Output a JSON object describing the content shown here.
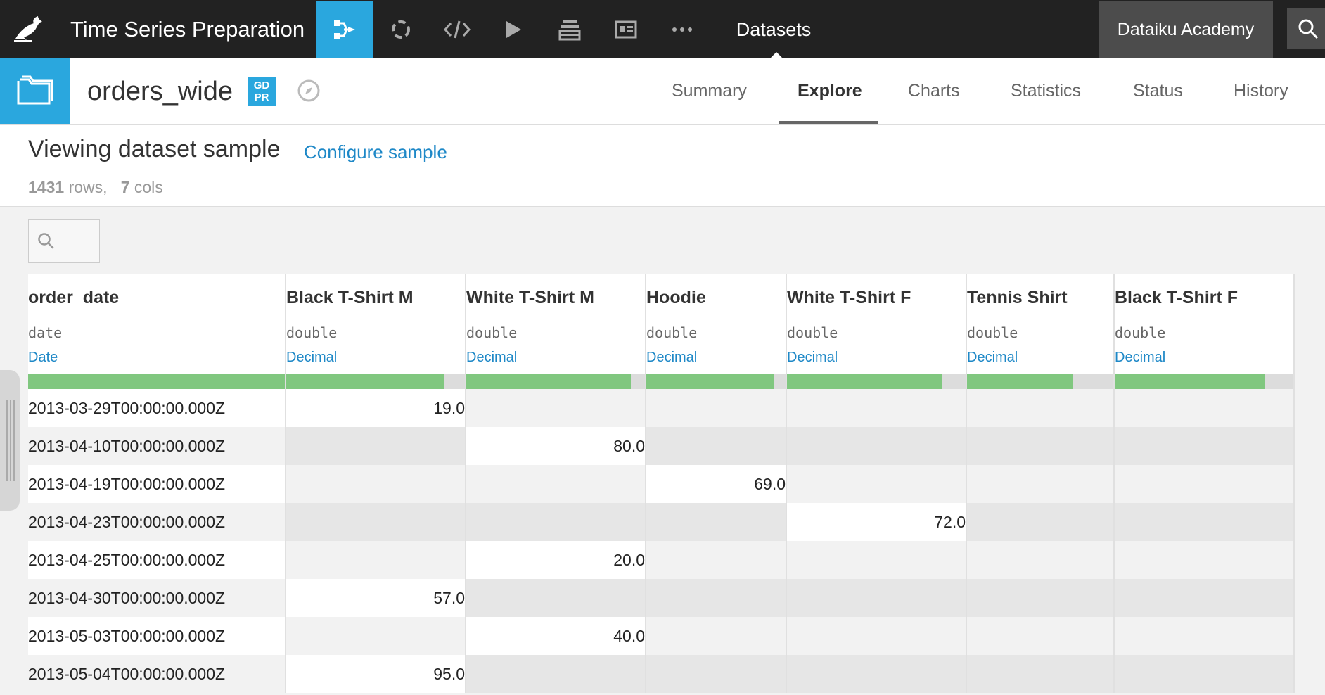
{
  "nav": {
    "project_title": "Time Series Preparation",
    "datasets_label": "Datasets",
    "academy_label": "Dataiku Academy",
    "icons": [
      "flow-icon",
      "lifecycle-icon",
      "code-icon",
      "run-icon",
      "stack-icon",
      "dashboard-icon",
      "more-icon"
    ]
  },
  "dataset": {
    "name": "orders_wide",
    "gdpr_top": "GD",
    "gdpr_bottom": "PR",
    "tabs": [
      "Summary",
      "Explore",
      "Charts",
      "Statistics",
      "Status",
      "History"
    ],
    "active_tab": "Explore"
  },
  "sample": {
    "title": "Viewing dataset sample",
    "configure_label": "Configure sample",
    "rows_count": "1431",
    "rows_label": "rows,",
    "cols_count": "7",
    "cols_label": "cols"
  },
  "columns": [
    {
      "name": "order_date",
      "type": "date",
      "meaning": "Date",
      "valid_fraction": 1.0
    },
    {
      "name": "Black T-Shirt M",
      "type": "double",
      "meaning": "Decimal",
      "valid_fraction": 0.88
    },
    {
      "name": "White T-Shirt M",
      "type": "double",
      "meaning": "Decimal",
      "valid_fraction": 0.92
    },
    {
      "name": "Hoodie",
      "type": "double",
      "meaning": "Decimal",
      "valid_fraction": 0.92
    },
    {
      "name": "White T-Shirt F",
      "type": "double",
      "meaning": "Decimal",
      "valid_fraction": 0.87
    },
    {
      "name": "Tennis Shirt",
      "type": "double",
      "meaning": "Decimal",
      "valid_fraction": 0.72
    },
    {
      "name": "Black T-Shirt F",
      "type": "double",
      "meaning": "Decimal",
      "valid_fraction": 0.84
    }
  ],
  "rows": [
    [
      "2013-03-29T00:00:00.000Z",
      "19.0",
      "",
      "",
      "",
      "",
      ""
    ],
    [
      "2013-04-10T00:00:00.000Z",
      "",
      "80.0",
      "",
      "",
      "",
      ""
    ],
    [
      "2013-04-19T00:00:00.000Z",
      "",
      "",
      "69.0",
      "",
      "",
      ""
    ],
    [
      "2013-04-23T00:00:00.000Z",
      "",
      "",
      "",
      "72.0",
      "",
      ""
    ],
    [
      "2013-04-25T00:00:00.000Z",
      "",
      "20.0",
      "",
      "",
      "",
      ""
    ],
    [
      "2013-04-30T00:00:00.000Z",
      "57.0",
      "",
      "",
      "",
      "",
      ""
    ],
    [
      "2013-05-03T00:00:00.000Z",
      "",
      "40.0",
      "",
      "",
      "",
      ""
    ],
    [
      "2013-05-04T00:00:00.000Z",
      "95.0",
      "",
      "",
      "",
      "",
      ""
    ]
  ],
  "colors": {
    "accent": "#2aa7de",
    "link": "#1e88c7",
    "valid_bar": "#80c77f",
    "nav_bg": "#222222"
  }
}
